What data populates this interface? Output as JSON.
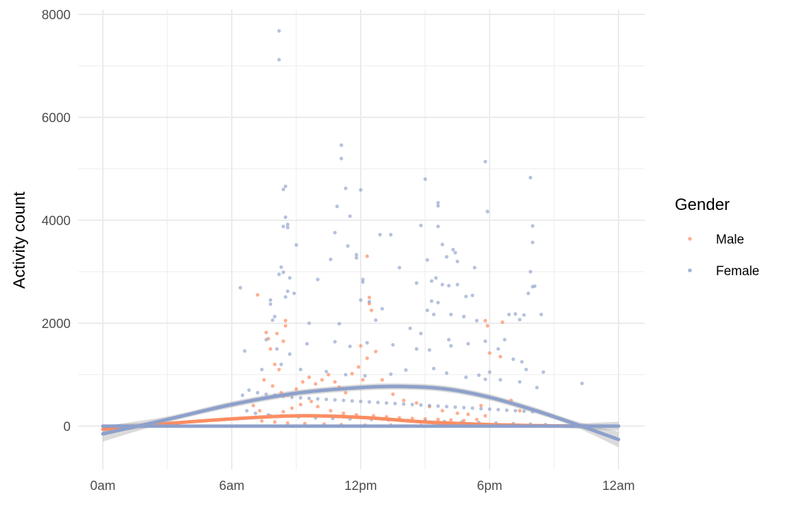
{
  "chart_data": {
    "type": "scatter",
    "title": "",
    "xlabel": "",
    "ylabel": "Activity count",
    "x_ticks": [
      "0am",
      "6am",
      "12pm",
      "6pm",
      "12am"
    ],
    "x_tick_hours": [
      0,
      6,
      12,
      18,
      24
    ],
    "xlim": [
      0,
      24
    ],
    "y_ticks": [
      "0",
      "2000",
      "4000",
      "6000",
      "8000"
    ],
    "y_tick_values": [
      0,
      2000,
      4000,
      6000,
      8000
    ],
    "ylim": [
      -800,
      8000
    ],
    "grid": true,
    "legend": {
      "title": "Gender",
      "position": "right",
      "entries": [
        "Male",
        "Female"
      ]
    },
    "series": [
      {
        "name": "Male",
        "color": "#fc8d62",
        "points": [
          [
            7.2,
            2550
          ],
          [
            7.6,
            1820
          ],
          [
            7.7,
            1700
          ],
          [
            7.8,
            1500
          ],
          [
            8.0,
            1200
          ],
          [
            8.2,
            1100
          ],
          [
            8.4,
            1650
          ],
          [
            8.5,
            1950
          ],
          [
            8.5,
            2050
          ],
          [
            8.1,
            1800
          ],
          [
            7.5,
            900
          ],
          [
            7.9,
            780
          ],
          [
            8.3,
            650
          ],
          [
            8.6,
            600
          ],
          [
            9.0,
            720
          ],
          [
            9.3,
            860
          ],
          [
            9.6,
            950
          ],
          [
            9.9,
            820
          ],
          [
            10.2,
            900
          ],
          [
            10.5,
            1000
          ],
          [
            10.8,
            860
          ],
          [
            11.0,
            760
          ],
          [
            11.3,
            650
          ],
          [
            11.6,
            1020
          ],
          [
            11.9,
            1150
          ],
          [
            12.1,
            900
          ],
          [
            12.3,
            1320
          ],
          [
            12.4,
            2500
          ],
          [
            12.4,
            2380
          ],
          [
            12.3,
            3300
          ],
          [
            12.0,
            1560
          ],
          [
            12.5,
            2250
          ],
          [
            12.7,
            1450
          ],
          [
            13.0,
            900
          ],
          [
            13.5,
            620
          ],
          [
            14.0,
            500
          ],
          [
            14.6,
            450
          ],
          [
            15.2,
            380
          ],
          [
            15.8,
            300
          ],
          [
            16.5,
            250
          ],
          [
            17.0,
            230
          ],
          [
            17.6,
            400
          ],
          [
            17.8,
            2050
          ],
          [
            17.9,
            1950
          ],
          [
            18.0,
            1420
          ],
          [
            18.5,
            1350
          ],
          [
            18.6,
            2020
          ],
          [
            19.0,
            500
          ],
          [
            19.4,
            300
          ],
          [
            17.8,
            200
          ],
          [
            7.0,
            400
          ],
          [
            7.3,
            300
          ],
          [
            7.8,
            200
          ],
          [
            8.4,
            280
          ],
          [
            8.8,
            350
          ],
          [
            9.2,
            420
          ],
          [
            9.7,
            480
          ],
          [
            10.0,
            380
          ],
          [
            10.6,
            300
          ],
          [
            11.2,
            250
          ],
          [
            11.8,
            220
          ],
          [
            12.6,
            200
          ],
          [
            13.2,
            180
          ],
          [
            13.8,
            160
          ],
          [
            14.4,
            150
          ],
          [
            15.0,
            140
          ],
          [
            15.6,
            130
          ],
          [
            16.2,
            120
          ],
          [
            16.8,
            110
          ],
          [
            17.4,
            130
          ],
          [
            7.4,
            100
          ],
          [
            8.0,
            80
          ],
          [
            8.6,
            60
          ],
          [
            9.4,
            50
          ],
          [
            10.3,
            40
          ],
          [
            11.1,
            30
          ],
          [
            12.2,
            20
          ],
          [
            13.4,
            20
          ],
          [
            14.8,
            15
          ],
          [
            16.0,
            10
          ],
          [
            17.2,
            10
          ],
          [
            18.2,
            10
          ],
          [
            18.8,
            5
          ],
          [
            19.5,
            5
          ],
          [
            9.0,
            0
          ],
          [
            10.0,
            0
          ],
          [
            11.0,
            0
          ],
          [
            12.0,
            0
          ],
          [
            13.0,
            0
          ],
          [
            14.0,
            0
          ]
        ],
        "trend": [
          [
            0,
            -60
          ],
          [
            3,
            50
          ],
          [
            6,
            140
          ],
          [
            9,
            200
          ],
          [
            12,
            170
          ],
          [
            15,
            80
          ],
          [
            18,
            30
          ],
          [
            21,
            5
          ],
          [
            24,
            0
          ]
        ]
      },
      {
        "name": "Female",
        "color": "#8da0cb",
        "points": [
          [
            8.2,
            7680
          ],
          [
            8.2,
            7120
          ],
          [
            11.1,
            5460
          ],
          [
            11.1,
            5200
          ],
          [
            17.8,
            5140
          ],
          [
            19.9,
            4830
          ],
          [
            15.0,
            4800
          ],
          [
            8.5,
            4660
          ],
          [
            8.4,
            4600
          ],
          [
            11.3,
            4620
          ],
          [
            12.0,
            4590
          ],
          [
            15.6,
            4340
          ],
          [
            15.6,
            4280
          ],
          [
            10.9,
            4270
          ],
          [
            17.9,
            4170
          ],
          [
            11.5,
            4080
          ],
          [
            8.5,
            4060
          ],
          [
            8.6,
            3920
          ],
          [
            8.4,
            3880
          ],
          [
            8.6,
            3860
          ],
          [
            15.6,
            3880
          ],
          [
            14.8,
            3900
          ],
          [
            20.0,
            3890
          ],
          [
            13.4,
            3720
          ],
          [
            12.9,
            3720
          ],
          [
            10.8,
            3760
          ],
          [
            11.4,
            3500
          ],
          [
            9.0,
            3520
          ],
          [
            15.8,
            3530
          ],
          [
            20.0,
            3570
          ],
          [
            16.3,
            3430
          ],
          [
            16.4,
            3370
          ],
          [
            11.8,
            3330
          ],
          [
            11.8,
            3270
          ],
          [
            16.0,
            3290
          ],
          [
            16.5,
            3200
          ],
          [
            10.6,
            3240
          ],
          [
            15.1,
            3230
          ],
          [
            13.8,
            3080
          ],
          [
            17.3,
            3080
          ],
          [
            8.3,
            3090
          ],
          [
            8.4,
            2990
          ],
          [
            8.2,
            2950
          ],
          [
            8.7,
            2880
          ],
          [
            12.1,
            2850
          ],
          [
            12.1,
            2800
          ],
          [
            14.6,
            2780
          ],
          [
            15.3,
            2820
          ],
          [
            15.5,
            2880
          ],
          [
            19.9,
            3000
          ],
          [
            6.4,
            2690
          ],
          [
            10.0,
            2850
          ],
          [
            15.8,
            2750
          ],
          [
            16.1,
            2730
          ],
          [
            16.5,
            2750
          ],
          [
            20.0,
            2710
          ],
          [
            20.1,
            2720
          ],
          [
            19.8,
            2580
          ],
          [
            19.2,
            2180
          ],
          [
            19.4,
            2070
          ],
          [
            17.2,
            2540
          ],
          [
            16.9,
            2520
          ],
          [
            15.3,
            2430
          ],
          [
            15.6,
            2400
          ],
          [
            8.6,
            2620
          ],
          [
            8.5,
            2510
          ],
          [
            7.8,
            2450
          ],
          [
            7.8,
            2370
          ],
          [
            8.9,
            2580
          ],
          [
            12.0,
            2450
          ],
          [
            12.4,
            2420
          ],
          [
            13.0,
            2280
          ],
          [
            15.1,
            2250
          ],
          [
            15.4,
            2170
          ],
          [
            16.2,
            2170
          ],
          [
            16.8,
            2130
          ],
          [
            17.4,
            2050
          ],
          [
            18.9,
            2170
          ],
          [
            19.6,
            2160
          ],
          [
            20.4,
            2170
          ],
          [
            8.0,
            2130
          ],
          [
            7.9,
            2060
          ],
          [
            9.6,
            2000
          ],
          [
            11.0,
            1990
          ],
          [
            12.7,
            2060
          ],
          [
            14.3,
            1900
          ],
          [
            14.8,
            1800
          ],
          [
            16.1,
            1680
          ],
          [
            17.8,
            1650
          ],
          [
            18.7,
            1680
          ],
          [
            6.6,
            1460
          ],
          [
            7.6,
            1680
          ],
          [
            8.1,
            1500
          ],
          [
            8.7,
            1400
          ],
          [
            9.5,
            1600
          ],
          [
            10.8,
            1640
          ],
          [
            11.5,
            1550
          ],
          [
            12.3,
            1620
          ],
          [
            13.5,
            1580
          ],
          [
            14.6,
            1500
          ],
          [
            15.2,
            1480
          ],
          [
            16.2,
            1560
          ],
          [
            17.0,
            1600
          ],
          [
            18.4,
            1500
          ],
          [
            19.1,
            1300
          ],
          [
            19.5,
            1250
          ],
          [
            20.5,
            1050
          ],
          [
            19.7,
            1100
          ],
          [
            18.0,
            1050
          ],
          [
            17.5,
            990
          ],
          [
            7.4,
            1100
          ],
          [
            8.3,
            1200
          ],
          [
            9.2,
            1100
          ],
          [
            10.4,
            1060
          ],
          [
            11.3,
            1000
          ],
          [
            12.2,
            980
          ],
          [
            13.4,
            1010
          ],
          [
            14.1,
            1090
          ],
          [
            15.4,
            1120
          ],
          [
            16.0,
            1030
          ],
          [
            16.9,
            950
          ],
          [
            17.8,
            910
          ],
          [
            18.5,
            900
          ],
          [
            19.4,
            860
          ],
          [
            20.2,
            750
          ],
          [
            6.5,
            600
          ],
          [
            6.8,
            700
          ],
          [
            7.2,
            650
          ],
          [
            7.6,
            620
          ],
          [
            8.0,
            600
          ],
          [
            8.4,
            580
          ],
          [
            8.8,
            560
          ],
          [
            9.2,
            550
          ],
          [
            9.6,
            540
          ],
          [
            10.0,
            530
          ],
          [
            10.4,
            520
          ],
          [
            10.8,
            510
          ],
          [
            11.2,
            500
          ],
          [
            11.6,
            490
          ],
          [
            12.0,
            480
          ],
          [
            12.4,
            470
          ],
          [
            12.8,
            460
          ],
          [
            13.2,
            450
          ],
          [
            13.6,
            440
          ],
          [
            14.0,
            430
          ],
          [
            14.4,
            420
          ],
          [
            14.8,
            410
          ],
          [
            15.2,
            400
          ],
          [
            15.6,
            390
          ],
          [
            16.0,
            380
          ],
          [
            16.4,
            370
          ],
          [
            16.8,
            360
          ],
          [
            17.2,
            350
          ],
          [
            17.6,
            340
          ],
          [
            18.0,
            330
          ],
          [
            18.4,
            320
          ],
          [
            18.8,
            310
          ],
          [
            19.2,
            300
          ],
          [
            19.6,
            290
          ],
          [
            20.0,
            280
          ],
          [
            22.3,
            830
          ],
          [
            6.7,
            300
          ],
          [
            7.1,
            250
          ],
          [
            7.7,
            220
          ],
          [
            8.3,
            200
          ],
          [
            9.1,
            180
          ],
          [
            9.9,
            160
          ],
          [
            10.7,
            150
          ],
          [
            11.5,
            140
          ],
          [
            12.5,
            130
          ],
          [
            13.3,
            120
          ],
          [
            14.2,
            110
          ],
          [
            15.0,
            100
          ],
          [
            15.9,
            90
          ],
          [
            16.7,
            80
          ],
          [
            17.5,
            70
          ],
          [
            18.3,
            60
          ],
          [
            19.1,
            50
          ],
          [
            19.9,
            40
          ],
          [
            20.6,
            30
          ],
          [
            7.0,
            0
          ],
          [
            8.0,
            0
          ],
          [
            9.0,
            0
          ],
          [
            10.0,
            0
          ],
          [
            11.0,
            0
          ],
          [
            12.0,
            0
          ],
          [
            13.0,
            0
          ],
          [
            14.0,
            0
          ],
          [
            15.0,
            0
          ],
          [
            16.0,
            0
          ],
          [
            17.0,
            0
          ],
          [
            18.0,
            0
          ],
          [
            19.0,
            0
          ],
          [
            20.0,
            0
          ]
        ],
        "trend": [
          [
            0,
            -150
          ],
          [
            3,
            130
          ],
          [
            6,
            420
          ],
          [
            9,
            640
          ],
          [
            12,
            750
          ],
          [
            14,
            770
          ],
          [
            16,
            720
          ],
          [
            18,
            560
          ],
          [
            20,
            320
          ],
          [
            22,
            40
          ],
          [
            24,
            -260
          ]
        ]
      },
      {
        "name": "Female",
        "color": "#8da0cb",
        "points": [],
        "trend": [
          [
            0,
            0
          ],
          [
            24,
            0
          ]
        ]
      }
    ]
  }
}
